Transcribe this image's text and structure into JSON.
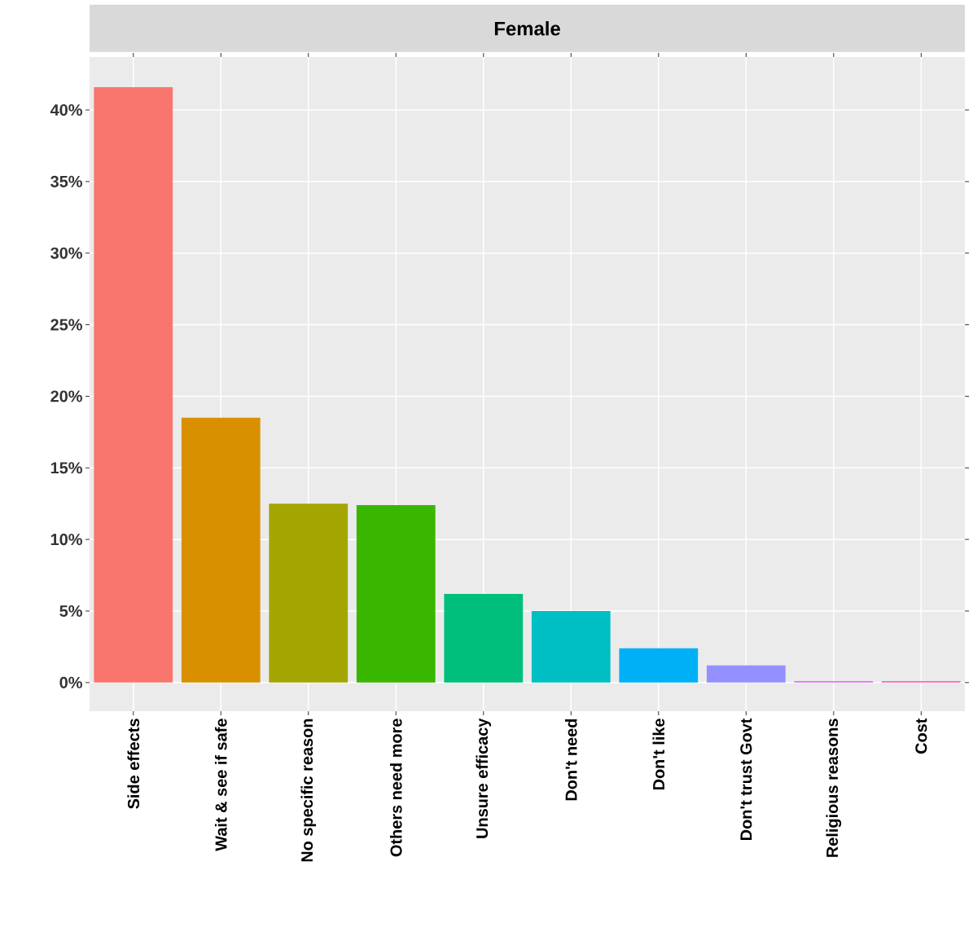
{
  "chart_data": {
    "type": "bar",
    "title": "Female",
    "categories": [
      "Side effects",
      "Wait & see if safe",
      "No specific reason",
      "Others need more",
      "Unsure efficacy",
      "Don't need",
      "Don't like",
      "Don't trust Govt",
      "Religious reasons",
      "Cost"
    ],
    "values": [
      41.6,
      18.5,
      12.5,
      12.4,
      6.2,
      5.0,
      2.4,
      1.2,
      0.1,
      0.1
    ],
    "colors": [
      "#f8766d",
      "#d89000",
      "#a3a500",
      "#39b600",
      "#00bf7d",
      "#00bfc4",
      "#00b0f6",
      "#9590ff",
      "#e76bf3",
      "#ff62bc"
    ],
    "ylim": [
      -2.0,
      43.7
    ],
    "yticks": [
      {
        "value": 0,
        "label": "0%"
      },
      {
        "value": 5,
        "label": "5%"
      },
      {
        "value": 10,
        "label": "10%"
      },
      {
        "value": 15,
        "label": "15%"
      },
      {
        "value": 20,
        "label": "20%"
      },
      {
        "value": 25,
        "label": "25%"
      },
      {
        "value": 30,
        "label": "30%"
      },
      {
        "value": 35,
        "label": "35%"
      },
      {
        "value": 40,
        "label": "40%"
      }
    ],
    "grid": true
  }
}
